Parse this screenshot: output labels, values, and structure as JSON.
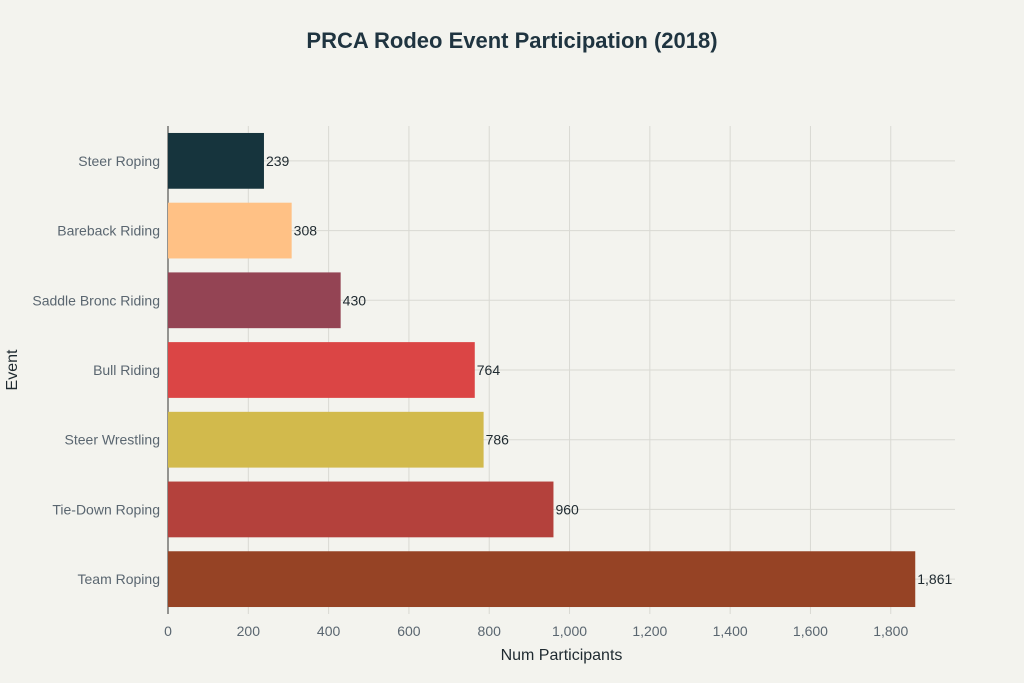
{
  "chart_data": {
    "type": "bar",
    "orientation": "horizontal",
    "title": "PRCA Rodeo Event Participation (2018)",
    "xlabel": "Num Participants",
    "ylabel": "Event",
    "xlim": [
      0,
      1960
    ],
    "xticks": [
      0,
      200,
      400,
      600,
      800,
      1000,
      1200,
      1400,
      1600,
      1800
    ],
    "xtick_labels": [
      "0",
      "200",
      "400",
      "600",
      "800",
      "1,000",
      "1,200",
      "1,400",
      "1,600",
      "1,800"
    ],
    "grid": true,
    "categories": [
      "Steer Roping",
      "Bareback Riding",
      "Saddle Bronc Riding",
      "Bull Riding",
      "Steer Wrestling",
      "Tie-Down Roping",
      "Team Roping"
    ],
    "values": [
      239,
      308,
      430,
      764,
      786,
      960,
      1861
    ],
    "value_labels": [
      "239",
      "308",
      "430",
      "764",
      "786",
      "960",
      "1,861"
    ],
    "colors": [
      "#16343d",
      "#ffc185",
      "#944454",
      "#db4545",
      "#d2ba4c",
      "#b4413c",
      "#964325"
    ]
  }
}
